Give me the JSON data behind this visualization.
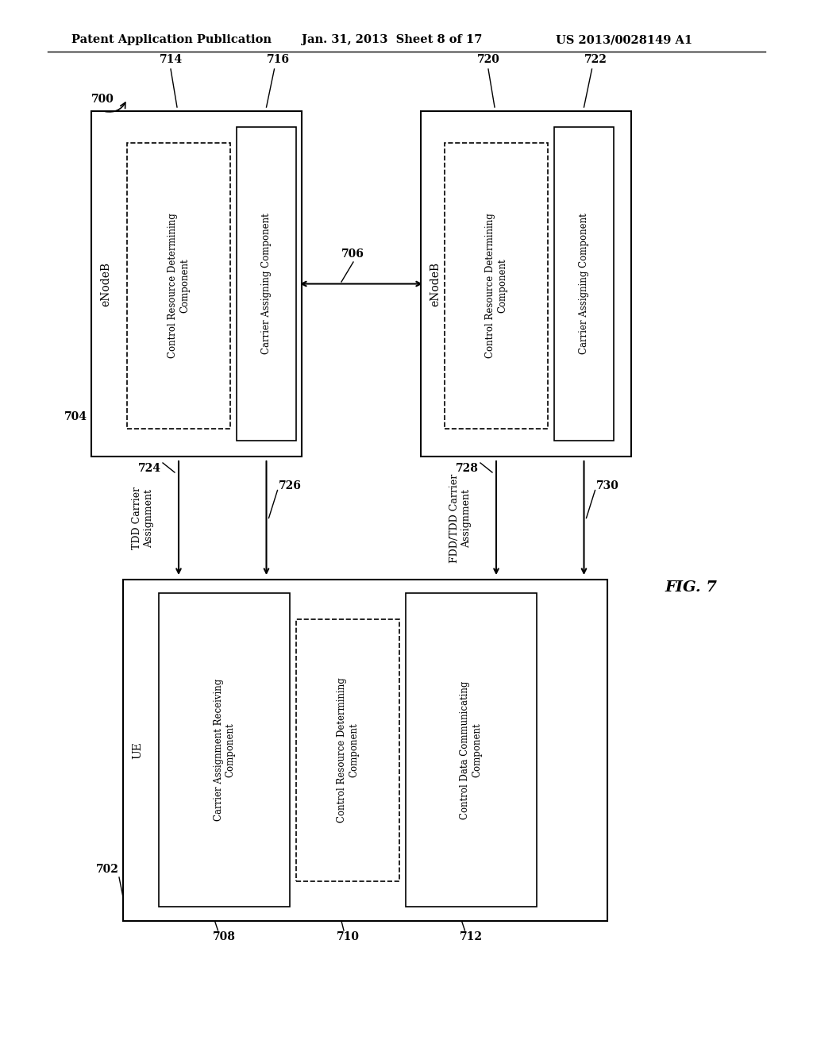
{
  "header_left": "Patent Application Publication",
  "header_mid": "Jan. 31, 2013  Sheet 8 of 17",
  "header_right": "US 2013/0028149 A1",
  "fig_label": "FIG. 7",
  "bg_color": "#ffffff",
  "ref700": "700",
  "ref704": "704",
  "ref706": "706",
  "ref714": "714",
  "ref716": "716",
  "ref720": "720",
  "ref722": "722",
  "ref702": "702",
  "ref724": "724",
  "ref726": "726",
  "ref728": "728",
  "ref730": "730",
  "ref708": "708",
  "ref710": "710",
  "ref712": "712",
  "label_enodeb": "eNodeB",
  "label_ue": "UE",
  "label_ctrl_res": "Control Resource Determining\nComponent",
  "label_carrier_assign": "Carrier Assigning Component",
  "label_carrier_recv": "Carrier Assignment Receiving\nComponent",
  "label_ctrl_data": "Control Data Communicating\nComponent",
  "label_tdd": "TDD Carrier\nAssignment",
  "label_fdd": "FDD/TDD Carrier\nAssignment"
}
